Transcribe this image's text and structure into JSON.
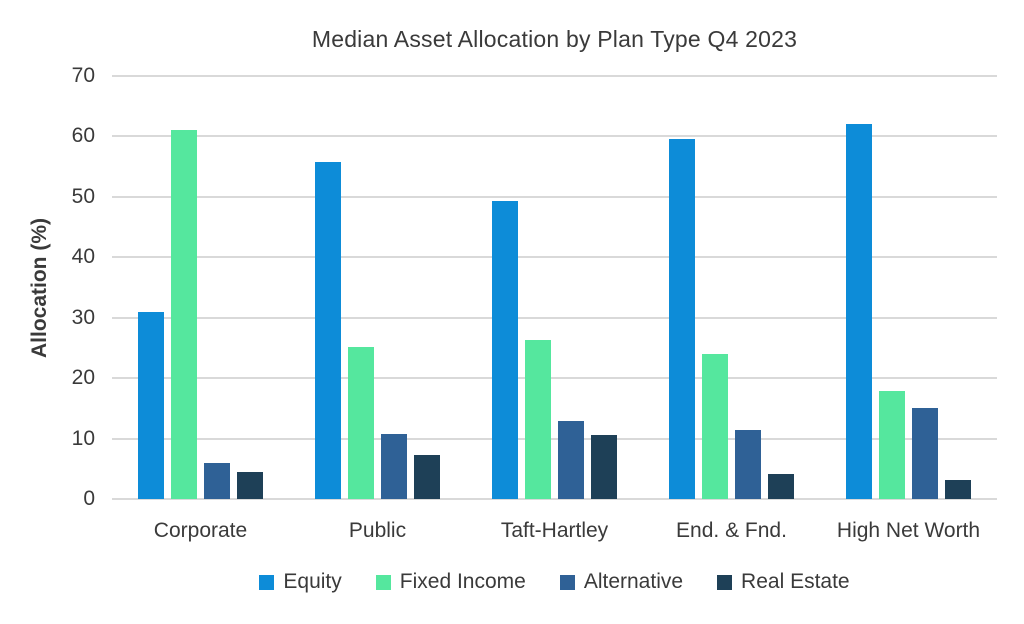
{
  "chart_data": {
    "type": "bar",
    "title": "Median Asset Allocation by Plan Type Q4 2023",
    "xlabel": "",
    "ylabel": "Allocation (%)",
    "ylim": [
      0,
      70
    ],
    "yticks": [
      0,
      10,
      20,
      30,
      40,
      50,
      60,
      70
    ],
    "grid": true,
    "legend_position": "bottom",
    "categories": [
      "Corporate",
      "Public",
      "Taft-Hartley",
      "End. & Fnd.",
      "High Net Worth"
    ],
    "series": [
      {
        "name": "Equity",
        "color": "#0d8cd8",
        "values": [
          31.0,
          55.7,
          49.3,
          59.5,
          62.0
        ]
      },
      {
        "name": "Fixed Income",
        "color": "#55e79e",
        "values": [
          61.0,
          25.2,
          26.3,
          24.0,
          17.9
        ]
      },
      {
        "name": "Alternative",
        "color": "#2f6196",
        "values": [
          6.0,
          10.7,
          12.9,
          11.5,
          15.0
        ]
      },
      {
        "name": "Real Estate",
        "color": "#1e4057",
        "values": [
          4.5,
          7.3,
          10.6,
          4.2,
          3.2
        ]
      }
    ],
    "colors": {
      "text": "#3a3a3a",
      "gridline": "#d9d9d9",
      "background": "#ffffff"
    }
  }
}
